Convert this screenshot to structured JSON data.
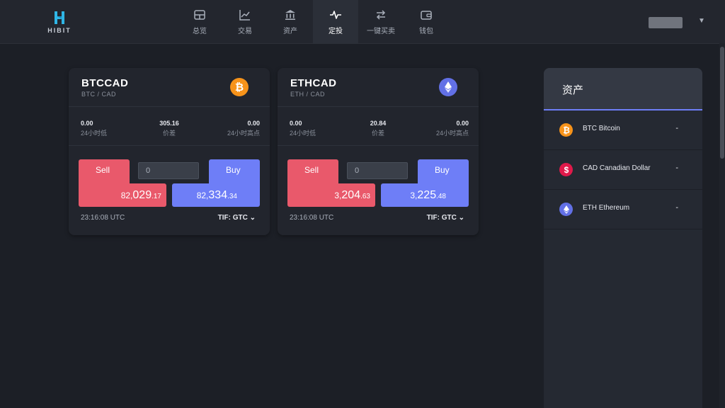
{
  "brand": {
    "logo_text": "HIBIT",
    "logo_color": "#2fb6e6"
  },
  "nav": [
    {
      "label": "总览",
      "icon": "layout-icon"
    },
    {
      "label": "交易",
      "icon": "chart-line-icon"
    },
    {
      "label": "资产",
      "icon": "bank-icon"
    },
    {
      "label": "定投",
      "icon": "pulse-icon",
      "active": true
    },
    {
      "label": "一键买卖",
      "icon": "swap-arrows-icon"
    },
    {
      "label": "钱包",
      "icon": "wallet-icon"
    }
  ],
  "cards": [
    {
      "pair": "BTCCAD",
      "sub": "BTC / CAD",
      "coin_icon": "btc-icon",
      "coin_color": "#f7931a",
      "stats": [
        {
          "value": "0.00",
          "label": "24小时低"
        },
        {
          "value": "305.16",
          "label": "价差"
        },
        {
          "value": "0.00",
          "label": "24小时高点"
        }
      ],
      "sell_label": "Sell",
      "sell_price": {
        "prefix": "82,",
        "main": "029",
        "suffix": ".17"
      },
      "qty_value": "0",
      "buy_label": "Buy",
      "buy_price": {
        "prefix": "82,",
        "main": "334",
        "suffix": ".34"
      },
      "time": "23:16:08 UTC",
      "tif": "TIF: GTC"
    },
    {
      "pair": "ETHCAD",
      "sub": "ETH / CAD",
      "coin_icon": "eth-icon",
      "coin_color": "#6270e6",
      "stats": [
        {
          "value": "0.00",
          "label": "24小时低"
        },
        {
          "value": "20.84",
          "label": "价差"
        },
        {
          "value": "0.00",
          "label": "24小时高点"
        }
      ],
      "sell_label": "Sell",
      "sell_price": {
        "prefix": "3,",
        "main": "204",
        "suffix": ".63"
      },
      "qty_value": "0",
      "buy_label": "Buy",
      "buy_price": {
        "prefix": "3,",
        "main": "225",
        "suffix": ".48"
      },
      "time": "23:16:08 UTC",
      "tif": "TIF: GTC"
    }
  ],
  "assets_panel": {
    "title": "资产",
    "items": [
      {
        "name": "BTC Bitcoin",
        "value": "-",
        "icon": "btc-icon",
        "color": "#f7931a"
      },
      {
        "name": "CAD Canadian Dollar",
        "value": "-",
        "icon": "dollar-icon",
        "color": "#e0194a"
      },
      {
        "name": "ETH Ethereum",
        "value": "-",
        "icon": "eth-icon",
        "color": "#6270e6"
      }
    ]
  },
  "colors": {
    "sell": "#e9596b",
    "buy": "#6e7ef7",
    "accent": "#6e7ef7",
    "background": "#1c1f26"
  }
}
